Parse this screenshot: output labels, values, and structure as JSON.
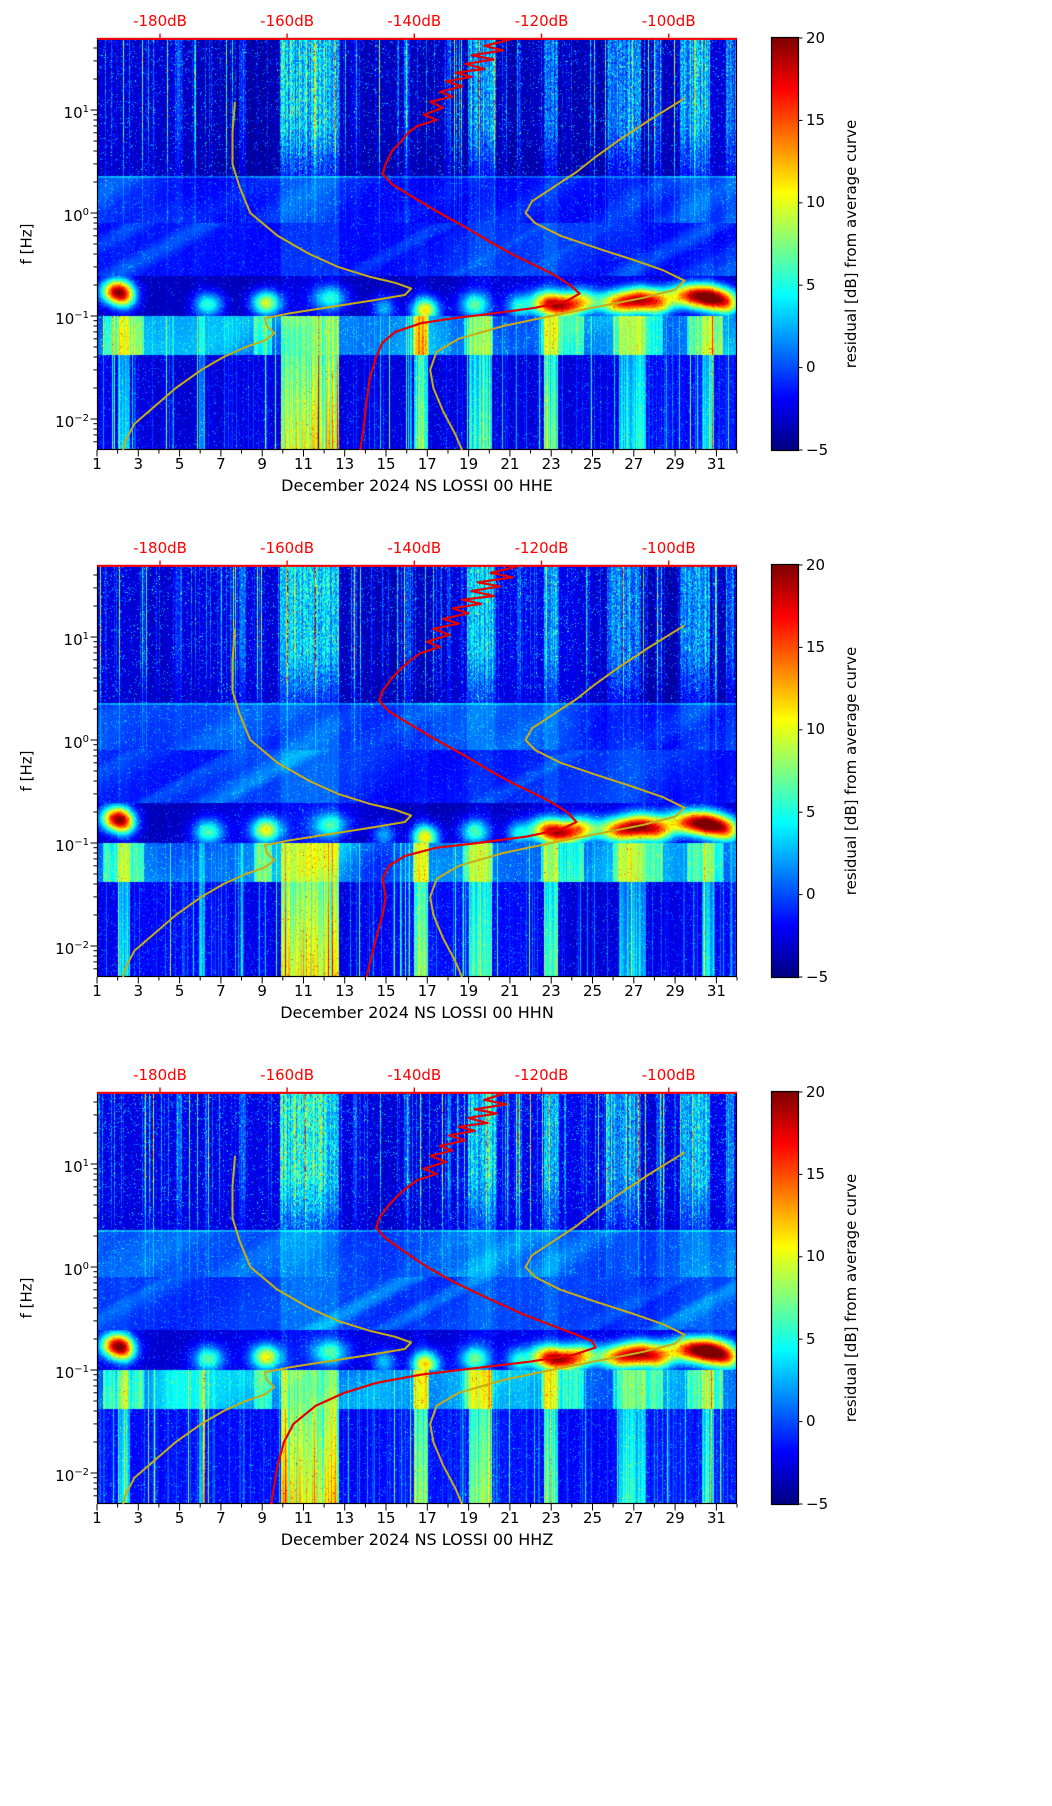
{
  "colors": {
    "top_axis_red": "#ff0000",
    "curve_red": "#e50000",
    "curve_yellow": "#c7ac16",
    "axis_black": "#000000",
    "background": "#ffffff"
  },
  "figure": {
    "y_axis_label": "f [Hz]",
    "y_ticks": [
      {
        "base": "10",
        "exp": "1",
        "f": 10
      },
      {
        "base": "10",
        "exp": "0",
        "f": 1
      },
      {
        "base": "10",
        "exp": "−1",
        "f": 0.1
      },
      {
        "base": "10",
        "exp": "−2",
        "f": 0.01
      }
    ],
    "x_ticks": [
      1,
      3,
      5,
      7,
      9,
      11,
      13,
      15,
      17,
      19,
      21,
      23,
      25,
      27,
      29,
      31
    ],
    "top_axis": {
      "labels": [
        "-180dB",
        "-160dB",
        "-140dB",
        "-120dB",
        "-100dB"
      ],
      "values": [
        -180,
        -160,
        -140,
        -120,
        -100
      ]
    },
    "colorbar": {
      "label": "residual [dB] from average curve",
      "ticks": [
        {
          "label": "20",
          "v": 20
        },
        {
          "label": "15",
          "v": 15
        },
        {
          "label": "10",
          "v": 10
        },
        {
          "label": "5",
          "v": 5
        },
        {
          "label": "0",
          "v": 0
        },
        {
          "label": "−5",
          "v": -5
        }
      ],
      "min": -5,
      "max": 20
    }
  },
  "panels": [
    {
      "title": "December 2024 NS LOSSI 00 HHE",
      "channel": "HHE"
    },
    {
      "title": "December 2024 NS LOSSI 00 HHN",
      "channel": "HHN"
    },
    {
      "title": "December 2024 NS LOSSI 00 HHZ",
      "channel": "HHZ"
    }
  ],
  "chart_data": {
    "type": "heatmap",
    "title": "Residual power spectrograms vs. monthly average curve, station NS LOSSI 00, channels HHE/HHN/HHZ, December 2024",
    "x_axis": {
      "label": "day of December 2024",
      "range": [
        1,
        32
      ],
      "ticks": [
        1,
        3,
        5,
        7,
        9,
        11,
        13,
        15,
        17,
        19,
        21,
        23,
        25,
        27,
        29,
        31
      ]
    },
    "y_axis": {
      "label": "f [Hz]",
      "scale": "log10",
      "range_hz": [
        0.005,
        50
      ]
    },
    "color_axis": {
      "label": "residual [dB] from average curve",
      "range_db": [
        -5,
        20
      ],
      "colormap": "jet"
    },
    "top_axis": {
      "unit": "dB",
      "ticks_db": [
        -180,
        -160,
        -140,
        -120,
        -100
      ],
      "db_to_day": {
        "day_at_minus180": 4.05,
        "days_per_db": 0.308
      }
    },
    "overlays": {
      "average_psd_db_vs_hz": {
        "HHE": [
          [
            48,
            -125
          ],
          [
            42,
            -129
          ],
          [
            38,
            -126
          ],
          [
            34,
            -131
          ],
          [
            31,
            -127.5
          ],
          [
            28,
            -132
          ],
          [
            25,
            -129
          ],
          [
            23,
            -133.5
          ],
          [
            21,
            -131
          ],
          [
            19,
            -135
          ],
          [
            17,
            -132.5
          ],
          [
            15,
            -136
          ],
          [
            13.5,
            -134
          ],
          [
            12,
            -137.5
          ],
          [
            10.5,
            -135.5
          ],
          [
            9,
            -138.5
          ],
          [
            8,
            -136.5
          ],
          [
            7,
            -139.5
          ],
          [
            6,
            -141
          ],
          [
            5,
            -142
          ],
          [
            4,
            -143.5
          ],
          [
            3,
            -144.5
          ],
          [
            2.4,
            -145
          ],
          [
            1.9,
            -143.5
          ],
          [
            1.4,
            -140
          ],
          [
            1.0,
            -136
          ],
          [
            0.7,
            -131.5
          ],
          [
            0.5,
            -127.5
          ],
          [
            0.38,
            -124
          ],
          [
            0.3,
            -120.5
          ],
          [
            0.25,
            -118
          ],
          [
            0.2,
            -115.5
          ],
          [
            0.165,
            -114
          ],
          [
            0.14,
            -116
          ],
          [
            0.12,
            -121
          ],
          [
            0.105,
            -128
          ],
          [
            0.095,
            -134
          ],
          [
            0.085,
            -139
          ],
          [
            0.07,
            -143
          ],
          [
            0.055,
            -145
          ],
          [
            0.04,
            -146
          ],
          [
            0.025,
            -147
          ],
          [
            0.015,
            -147.5
          ],
          [
            0.008,
            -148
          ],
          [
            0.005,
            -148.5
          ]
        ],
        "HHN": [
          [
            48,
            -124
          ],
          [
            42,
            -128
          ],
          [
            38,
            -124.5
          ],
          [
            34,
            -130
          ],
          [
            31,
            -126.5
          ],
          [
            28,
            -131
          ],
          [
            25,
            -127.5
          ],
          [
            23,
            -132.5
          ],
          [
            21,
            -129.5
          ],
          [
            19,
            -134
          ],
          [
            17,
            -131.5
          ],
          [
            15,
            -135.5
          ],
          [
            13.5,
            -133
          ],
          [
            12,
            -137
          ],
          [
            10.5,
            -134.5
          ],
          [
            9,
            -138
          ],
          [
            8,
            -136
          ],
          [
            7,
            -139
          ],
          [
            6,
            -140.5
          ],
          [
            5,
            -142
          ],
          [
            4,
            -143.5
          ],
          [
            3,
            -145
          ],
          [
            2.4,
            -145.5
          ],
          [
            1.9,
            -144
          ],
          [
            1.4,
            -140.5
          ],
          [
            1.0,
            -136.5
          ],
          [
            0.7,
            -132
          ],
          [
            0.5,
            -128
          ],
          [
            0.38,
            -124.5
          ],
          [
            0.3,
            -121
          ],
          [
            0.25,
            -118.5
          ],
          [
            0.2,
            -116
          ],
          [
            0.16,
            -114.5
          ],
          [
            0.135,
            -117
          ],
          [
            0.115,
            -122.5
          ],
          [
            0.1,
            -130
          ],
          [
            0.09,
            -136.5
          ],
          [
            0.075,
            -141.5
          ],
          [
            0.06,
            -144
          ],
          [
            0.045,
            -145
          ],
          [
            0.03,
            -144.5
          ],
          [
            0.02,
            -145
          ],
          [
            0.012,
            -146
          ],
          [
            0.005,
            -147.5
          ]
        ],
        "HHZ": [
          [
            48,
            -126
          ],
          [
            42,
            -129
          ],
          [
            38,
            -125.5
          ],
          [
            34,
            -130.5
          ],
          [
            31,
            -127
          ],
          [
            28,
            -131.5
          ],
          [
            25,
            -128.5
          ],
          [
            23,
            -133
          ],
          [
            21,
            -130.5
          ],
          [
            19,
            -134.5
          ],
          [
            17,
            -132
          ],
          [
            15,
            -136
          ],
          [
            13.5,
            -134
          ],
          [
            12,
            -137.5
          ],
          [
            10.5,
            -135
          ],
          [
            9,
            -138.5
          ],
          [
            8,
            -136.5
          ],
          [
            7,
            -139.5
          ],
          [
            6,
            -141
          ],
          [
            5,
            -142.5
          ],
          [
            4,
            -144
          ],
          [
            3,
            -145.5
          ],
          [
            2.4,
            -146
          ],
          [
            1.9,
            -144.5
          ],
          [
            1.4,
            -141.5
          ],
          [
            1.0,
            -138
          ],
          [
            0.7,
            -133.5
          ],
          [
            0.5,
            -128.5
          ],
          [
            0.35,
            -123
          ],
          [
            0.28,
            -119
          ],
          [
            0.22,
            -114.5
          ],
          [
            0.19,
            -112
          ],
          [
            0.165,
            -111.5
          ],
          [
            0.14,
            -115
          ],
          [
            0.12,
            -122
          ],
          [
            0.105,
            -130
          ],
          [
            0.09,
            -139
          ],
          [
            0.075,
            -146
          ],
          [
            0.06,
            -151
          ],
          [
            0.045,
            -155.5
          ],
          [
            0.03,
            -159
          ],
          [
            0.02,
            -160.5
          ],
          [
            0.012,
            -161.5
          ],
          [
            0.005,
            -162.5
          ]
        ]
      },
      "noise_models_db_vs_hz": {
        "low_model": [
          [
            12,
            -168.2
          ],
          [
            6,
            -168.6
          ],
          [
            3,
            -168.6
          ],
          [
            1.8,
            -167.5
          ],
          [
            1.0,
            -165.8
          ],
          [
            0.6,
            -161.5
          ],
          [
            0.4,
            -156.5
          ],
          [
            0.3,
            -152
          ],
          [
            0.24,
            -147
          ],
          [
            0.21,
            -143
          ],
          [
            0.185,
            -140.5
          ],
          [
            0.16,
            -141.5
          ],
          [
            0.14,
            -147
          ],
          [
            0.12,
            -154
          ],
          [
            0.105,
            -160
          ],
          [
            0.095,
            -163.5
          ],
          [
            0.08,
            -163.2
          ],
          [
            0.068,
            -162.0
          ],
          [
            0.058,
            -163.5
          ],
          [
            0.05,
            -166.5
          ],
          [
            0.04,
            -170
          ],
          [
            0.03,
            -173.5
          ],
          [
            0.02,
            -177.5
          ],
          [
            0.013,
            -181
          ],
          [
            0.009,
            -184
          ],
          [
            0.006,
            -185.5
          ],
          [
            0.005,
            -185.8
          ]
        ],
        "high_model": [
          [
            13,
            -97.5
          ],
          [
            8,
            -103
          ],
          [
            5,
            -108
          ],
          [
            3.5,
            -111.5
          ],
          [
            2.5,
            -114.5
          ],
          [
            1.8,
            -118
          ],
          [
            1.3,
            -121.5
          ],
          [
            1.0,
            -122.5
          ],
          [
            0.8,
            -121
          ],
          [
            0.6,
            -117
          ],
          [
            0.45,
            -111
          ],
          [
            0.35,
            -105.5
          ],
          [
            0.28,
            -101
          ],
          [
            0.22,
            -97.5
          ],
          [
            0.18,
            -99
          ],
          [
            0.15,
            -104
          ],
          [
            0.12,
            -112
          ],
          [
            0.1,
            -118.5
          ],
          [
            0.08,
            -126
          ],
          [
            0.06,
            -133
          ],
          [
            0.045,
            -136.5
          ],
          [
            0.03,
            -137.5
          ],
          [
            0.02,
            -137
          ],
          [
            0.012,
            -135.5
          ],
          [
            0.007,
            -133.5
          ],
          [
            0.005,
            -132.5
          ]
        ]
      }
    },
    "texture": {
      "render_seeds": [
        101,
        2025,
        7
      ],
      "high_band_hz": [
        2.3,
        50
      ],
      "mid_band_hz": [
        0.8,
        2.3
      ],
      "wisp_band_hz": [
        0.25,
        0.8
      ],
      "microseism_band_hz": [
        0.1,
        0.25
      ],
      "secondary_band_hz": [
        0.042,
        0.1
      ],
      "low_band_hz": [
        0.005,
        0.042
      ],
      "high_band_event_days": [
        [
          9.85,
          12.7,
          11
        ],
        [
          18.95,
          20.35,
          9
        ],
        [
          22.65,
          23.35,
          8
        ],
        [
          25.7,
          27.35,
          8
        ],
        [
          29.25,
          30.7,
          9
        ],
        [
          4.85,
          5.1,
          5
        ],
        [
          7.95,
          8.2,
          5
        ],
        [
          15.85,
          16.15,
          6
        ],
        [
          17.95,
          18.15,
          5
        ],
        [
          21.35,
          21.55,
          5
        ],
        [
          31.45,
          31.85,
          6
        ],
        [
          13.4,
          13.6,
          4
        ],
        [
          28.1,
          28.35,
          5
        ]
      ],
      "low_band_event_days": [
        [
          9.9,
          12.7,
          15
        ],
        [
          16.35,
          17.05,
          11
        ],
        [
          19.0,
          20.15,
          10
        ],
        [
          22.65,
          23.35,
          11
        ],
        [
          5.95,
          6.25,
          6
        ],
        [
          2.0,
          2.6,
          7
        ],
        [
          26.3,
          27.6,
          7
        ],
        [
          30.3,
          30.9,
          7
        ]
      ],
      "secondary_band_event_days": [
        [
          1.3,
          3.3,
          6
        ],
        [
          8.6,
          9.5,
          5
        ],
        [
          16.3,
          17.1,
          6
        ],
        [
          18.8,
          20.2,
          5
        ],
        [
          22.5,
          24.6,
          6
        ],
        [
          26.0,
          28.4,
          5
        ],
        [
          29.6,
          31.3,
          6
        ]
      ],
      "microseism_blobs_day_hz_amp_sigma": [
        [
          1.9,
          0.175,
          19,
          0.5
        ],
        [
          2.4,
          0.155,
          9,
          0.4
        ],
        [
          6.4,
          0.13,
          9,
          0.5
        ],
        [
          9.2,
          0.135,
          13,
          0.5
        ],
        [
          12.3,
          0.15,
          8,
          0.6
        ],
        [
          14.9,
          0.12,
          6,
          0.4
        ],
        [
          16.9,
          0.115,
          14,
          0.45
        ],
        [
          19.3,
          0.13,
          9,
          0.5
        ],
        [
          21.4,
          0.125,
          7,
          0.4
        ],
        [
          22.7,
          0.135,
          14,
          0.55
        ],
        [
          23.6,
          0.125,
          16,
          0.55
        ],
        [
          24.5,
          0.14,
          11,
          0.5
        ],
        [
          26.3,
          0.135,
          17,
          0.75
        ],
        [
          27.4,
          0.15,
          14,
          0.6
        ],
        [
          28.2,
          0.13,
          11,
          0.5
        ],
        [
          29.9,
          0.16,
          20,
          0.9
        ],
        [
          30.9,
          0.145,
          13,
          0.6
        ],
        [
          31.6,
          0.13,
          10,
          0.45
        ]
      ]
    }
  }
}
